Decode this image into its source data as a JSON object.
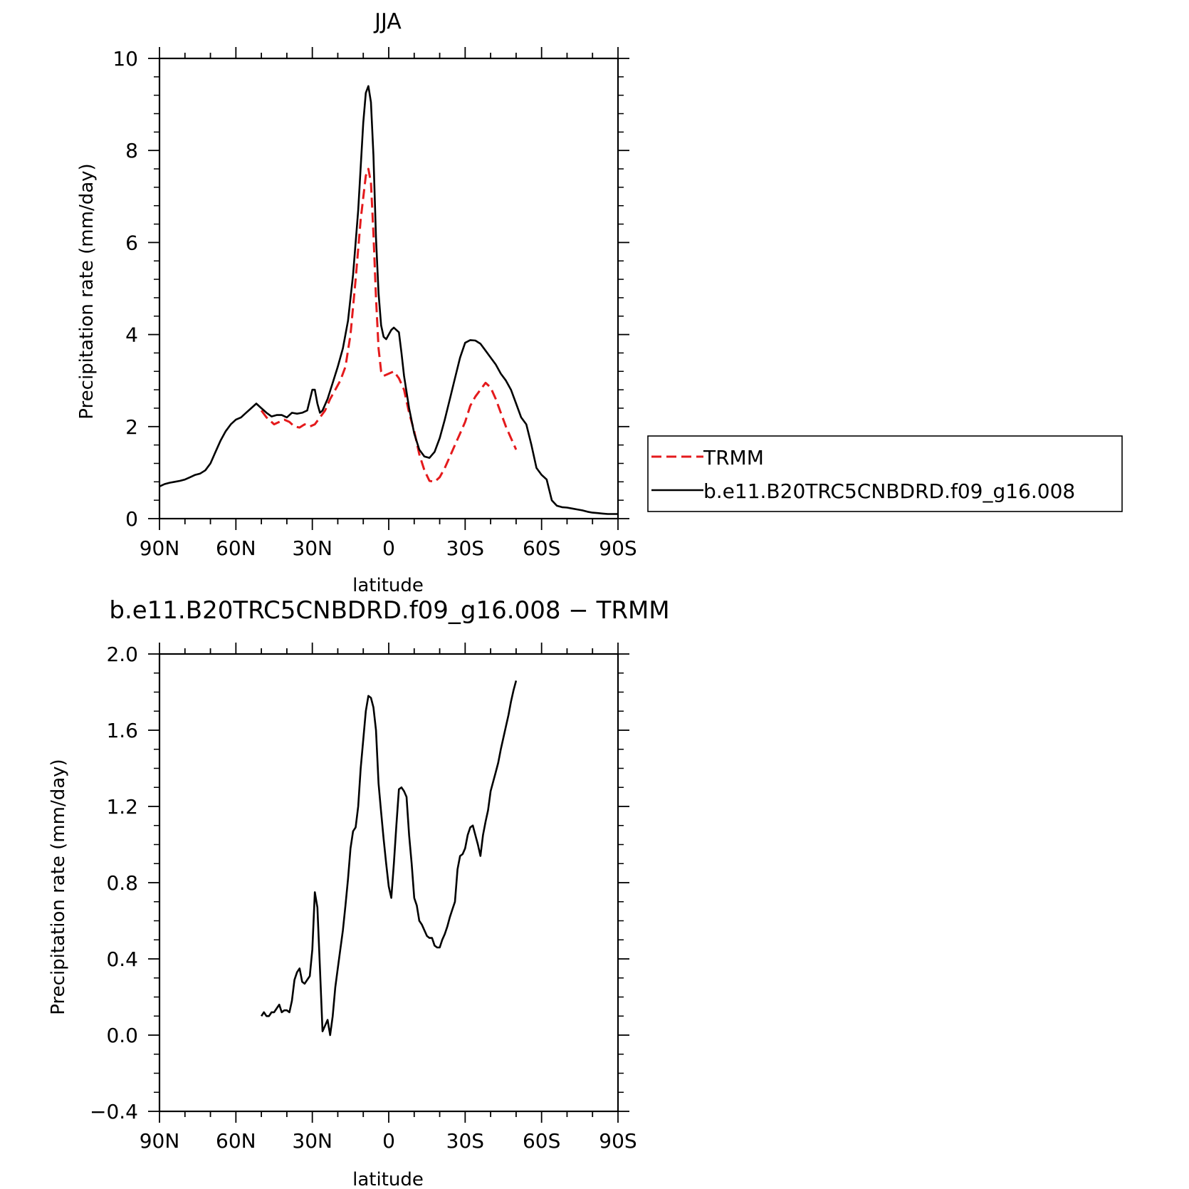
{
  "chart_data": [
    {
      "type": "line",
      "title": "JJA",
      "xlabel": "latitude",
      "ylabel": "Precipitation rate (mm/day)",
      "xlim": [
        90,
        -90
      ],
      "ylim": [
        0,
        10
      ],
      "x_ticks": [
        {
          "value": 90,
          "label": "90N"
        },
        {
          "value": 60,
          "label": "60N"
        },
        {
          "value": 30,
          "label": "30N"
        },
        {
          "value": 0,
          "label": "0"
        },
        {
          "value": -30,
          "label": "30S"
        },
        {
          "value": -60,
          "label": "60S"
        },
        {
          "value": -90,
          "label": "90S"
        }
      ],
      "y_ticks": [
        {
          "value": 0,
          "label": "0"
        },
        {
          "value": 2,
          "label": "2"
        },
        {
          "value": 4,
          "label": "4"
        },
        {
          "value": 6,
          "label": "6"
        },
        {
          "value": 8,
          "label": "8"
        },
        {
          "value": 10,
          "label": "10"
        }
      ],
      "legend": "outside-right",
      "series": [
        {
          "name": "TRMM",
          "color": "#e41a1c",
          "dash": true,
          "x": [
            50,
            48,
            45,
            43,
            41,
            39,
            37,
            35,
            33,
            31,
            29,
            27,
            25,
            23,
            21,
            19,
            17,
            15,
            13,
            11,
            9,
            8,
            7,
            6,
            5,
            4,
            3,
            2,
            0,
            -2,
            -4,
            -6,
            -8,
            -10,
            -12,
            -14,
            -16,
            -18,
            -20,
            -22,
            -24,
            -26,
            -28,
            -30,
            -32,
            -34,
            -36,
            -38,
            -40,
            -42,
            -44,
            -46,
            -48,
            -50
          ],
          "y": [
            2.35,
            2.2,
            2.05,
            2.1,
            2.15,
            2.1,
            2.0,
            1.98,
            2.05,
            2.0,
            2.05,
            2.2,
            2.35,
            2.6,
            2.8,
            3.0,
            3.3,
            4.0,
            5.2,
            6.5,
            7.45,
            7.6,
            7.3,
            6.2,
            4.8,
            3.7,
            3.2,
            3.1,
            3.15,
            3.2,
            3.05,
            2.8,
            2.3,
            1.9,
            1.4,
            1.05,
            0.82,
            0.8,
            0.9,
            1.1,
            1.35,
            1.6,
            1.85,
            2.1,
            2.45,
            2.65,
            2.8,
            2.95,
            2.85,
            2.6,
            2.3,
            2.0,
            1.75,
            1.5
          ]
        },
        {
          "name": "b.e11.B20TRC5CNBDRD.f09_g16.008",
          "color": "#000000",
          "dash": false,
          "x": [
            90,
            88,
            86,
            84,
            82,
            80,
            78,
            76,
            74,
            72,
            70,
            68,
            66,
            64,
            62,
            60,
            58,
            56,
            54,
            52,
            50,
            48,
            46,
            44,
            42,
            40,
            38,
            36,
            34,
            32,
            30,
            29,
            28,
            27,
            26,
            24,
            22,
            20,
            18,
            16,
            14,
            12,
            10,
            9,
            8,
            7,
            6,
            5,
            4,
            3,
            2,
            1,
            0,
            -1,
            -2,
            -4,
            -5,
            -6,
            -8,
            -10,
            -12,
            -14,
            -16,
            -18,
            -20,
            -22,
            -24,
            -26,
            -28,
            -30,
            -32,
            -34,
            -36,
            -38,
            -40,
            -42,
            -44,
            -46,
            -48,
            -50,
            -52,
            -54,
            -56,
            -58,
            -60,
            -62,
            -64,
            -66,
            -68,
            -70,
            -72,
            -74,
            -76,
            -78,
            -80,
            -82,
            -84,
            -86,
            -88,
            -90
          ],
          "y": [
            0.7,
            0.75,
            0.78,
            0.8,
            0.82,
            0.85,
            0.9,
            0.95,
            0.98,
            1.05,
            1.2,
            1.45,
            1.7,
            1.9,
            2.05,
            2.15,
            2.2,
            2.3,
            2.4,
            2.5,
            2.4,
            2.3,
            2.22,
            2.25,
            2.25,
            2.2,
            2.3,
            2.28,
            2.3,
            2.35,
            2.8,
            2.8,
            2.5,
            2.3,
            2.35,
            2.6,
            2.95,
            3.3,
            3.7,
            4.3,
            5.3,
            6.7,
            8.6,
            9.25,
            9.4,
            9.05,
            7.9,
            6.1,
            4.9,
            4.2,
            3.95,
            3.9,
            4.0,
            4.1,
            4.15,
            4.05,
            3.6,
            3.1,
            2.4,
            1.85,
            1.5,
            1.35,
            1.32,
            1.45,
            1.75,
            2.15,
            2.6,
            3.05,
            3.5,
            3.82,
            3.88,
            3.87,
            3.8,
            3.65,
            3.5,
            3.35,
            3.15,
            3.0,
            2.8,
            2.5,
            2.2,
            2.05,
            1.6,
            1.1,
            0.95,
            0.85,
            0.4,
            0.28,
            0.25,
            0.24,
            0.22,
            0.2,
            0.18,
            0.15,
            0.13,
            0.12,
            0.11,
            0.1,
            0.1,
            0.1
          ]
        }
      ]
    },
    {
      "type": "line",
      "title": "b.e11.B20TRC5CNBDRD.f09_g16.008 − TRMM",
      "xlabel": "latitude",
      "ylabel": "Precipitation rate (mm/day)",
      "xlim": [
        90,
        -90
      ],
      "ylim": [
        -0.4,
        2.0
      ],
      "x_ticks": [
        {
          "value": 90,
          "label": "90N"
        },
        {
          "value": 60,
          "label": "60N"
        },
        {
          "value": 30,
          "label": "30N"
        },
        {
          "value": 0,
          "label": "0"
        },
        {
          "value": -30,
          "label": "30S"
        },
        {
          "value": -60,
          "label": "60S"
        },
        {
          "value": -90,
          "label": "90S"
        }
      ],
      "y_ticks": [
        {
          "value": -0.4,
          "label": "−0.4"
        },
        {
          "value": 0.0,
          "label": "0.0"
        },
        {
          "value": 0.4,
          "label": "0.4"
        },
        {
          "value": 0.8,
          "label": "0.8"
        },
        {
          "value": 1.2,
          "label": "1.2"
        },
        {
          "value": 1.6,
          "label": "1.6"
        },
        {
          "value": 2.0,
          "label": "2.0"
        }
      ],
      "series": [
        {
          "color": "#000000",
          "dash": false,
          "x": [
            50,
            49,
            48,
            47,
            46,
            45,
            44,
            43,
            42,
            41,
            40,
            39,
            38,
            37,
            36,
            35,
            34,
            33,
            32,
            31,
            30,
            29,
            28,
            27,
            26,
            25,
            24,
            23,
            22,
            21,
            20,
            19,
            18,
            17,
            16,
            15,
            14,
            13,
            12,
            11,
            10,
            9,
            8,
            7,
            6,
            5,
            4,
            3,
            2,
            1,
            0,
            -1,
            -2,
            -3,
            -4,
            -5,
            -6,
            -7,
            -8,
            -9,
            -10,
            -11,
            -12,
            -13,
            -14,
            -15,
            -16,
            -17,
            -18,
            -19,
            -20,
            -21,
            -22,
            -23,
            -24,
            -25,
            -26,
            -27,
            -28,
            -29,
            -30,
            -31,
            -32,
            -33,
            -34,
            -35,
            -36,
            -37,
            -38,
            -39,
            -40,
            -41,
            -42,
            -43,
            -44,
            -45,
            -46,
            -47,
            -48,
            -49,
            -50
          ],
          "y": [
            0.1,
            0.12,
            0.1,
            0.1,
            0.12,
            0.12,
            0.14,
            0.16,
            0.12,
            0.13,
            0.13,
            0.12,
            0.18,
            0.29,
            0.33,
            0.35,
            0.28,
            0.27,
            0.29,
            0.31,
            0.45,
            0.75,
            0.67,
            0.35,
            0.02,
            0.05,
            0.08,
            0.0,
            0.1,
            0.25,
            0.35,
            0.45,
            0.55,
            0.68,
            0.82,
            0.98,
            1.07,
            1.09,
            1.2,
            1.4,
            1.55,
            1.7,
            1.78,
            1.77,
            1.72,
            1.6,
            1.32,
            1.17,
            1.03,
            0.9,
            0.78,
            0.72,
            0.9,
            1.1,
            1.29,
            1.3,
            1.28,
            1.25,
            1.05,
            0.9,
            0.72,
            0.68,
            0.6,
            0.58,
            0.55,
            0.52,
            0.51,
            0.51,
            0.47,
            0.46,
            0.46,
            0.5,
            0.53,
            0.57,
            0.62,
            0.66,
            0.7,
            0.87,
            0.94,
            0.95,
            0.98,
            1.05,
            1.09,
            1.1,
            1.05,
            1.0,
            0.94,
            1.05,
            1.12,
            1.18,
            1.28,
            1.33,
            1.38,
            1.43,
            1.5,
            1.56,
            1.62,
            1.68,
            1.75,
            1.81,
            1.86
          ]
        }
      ]
    }
  ]
}
